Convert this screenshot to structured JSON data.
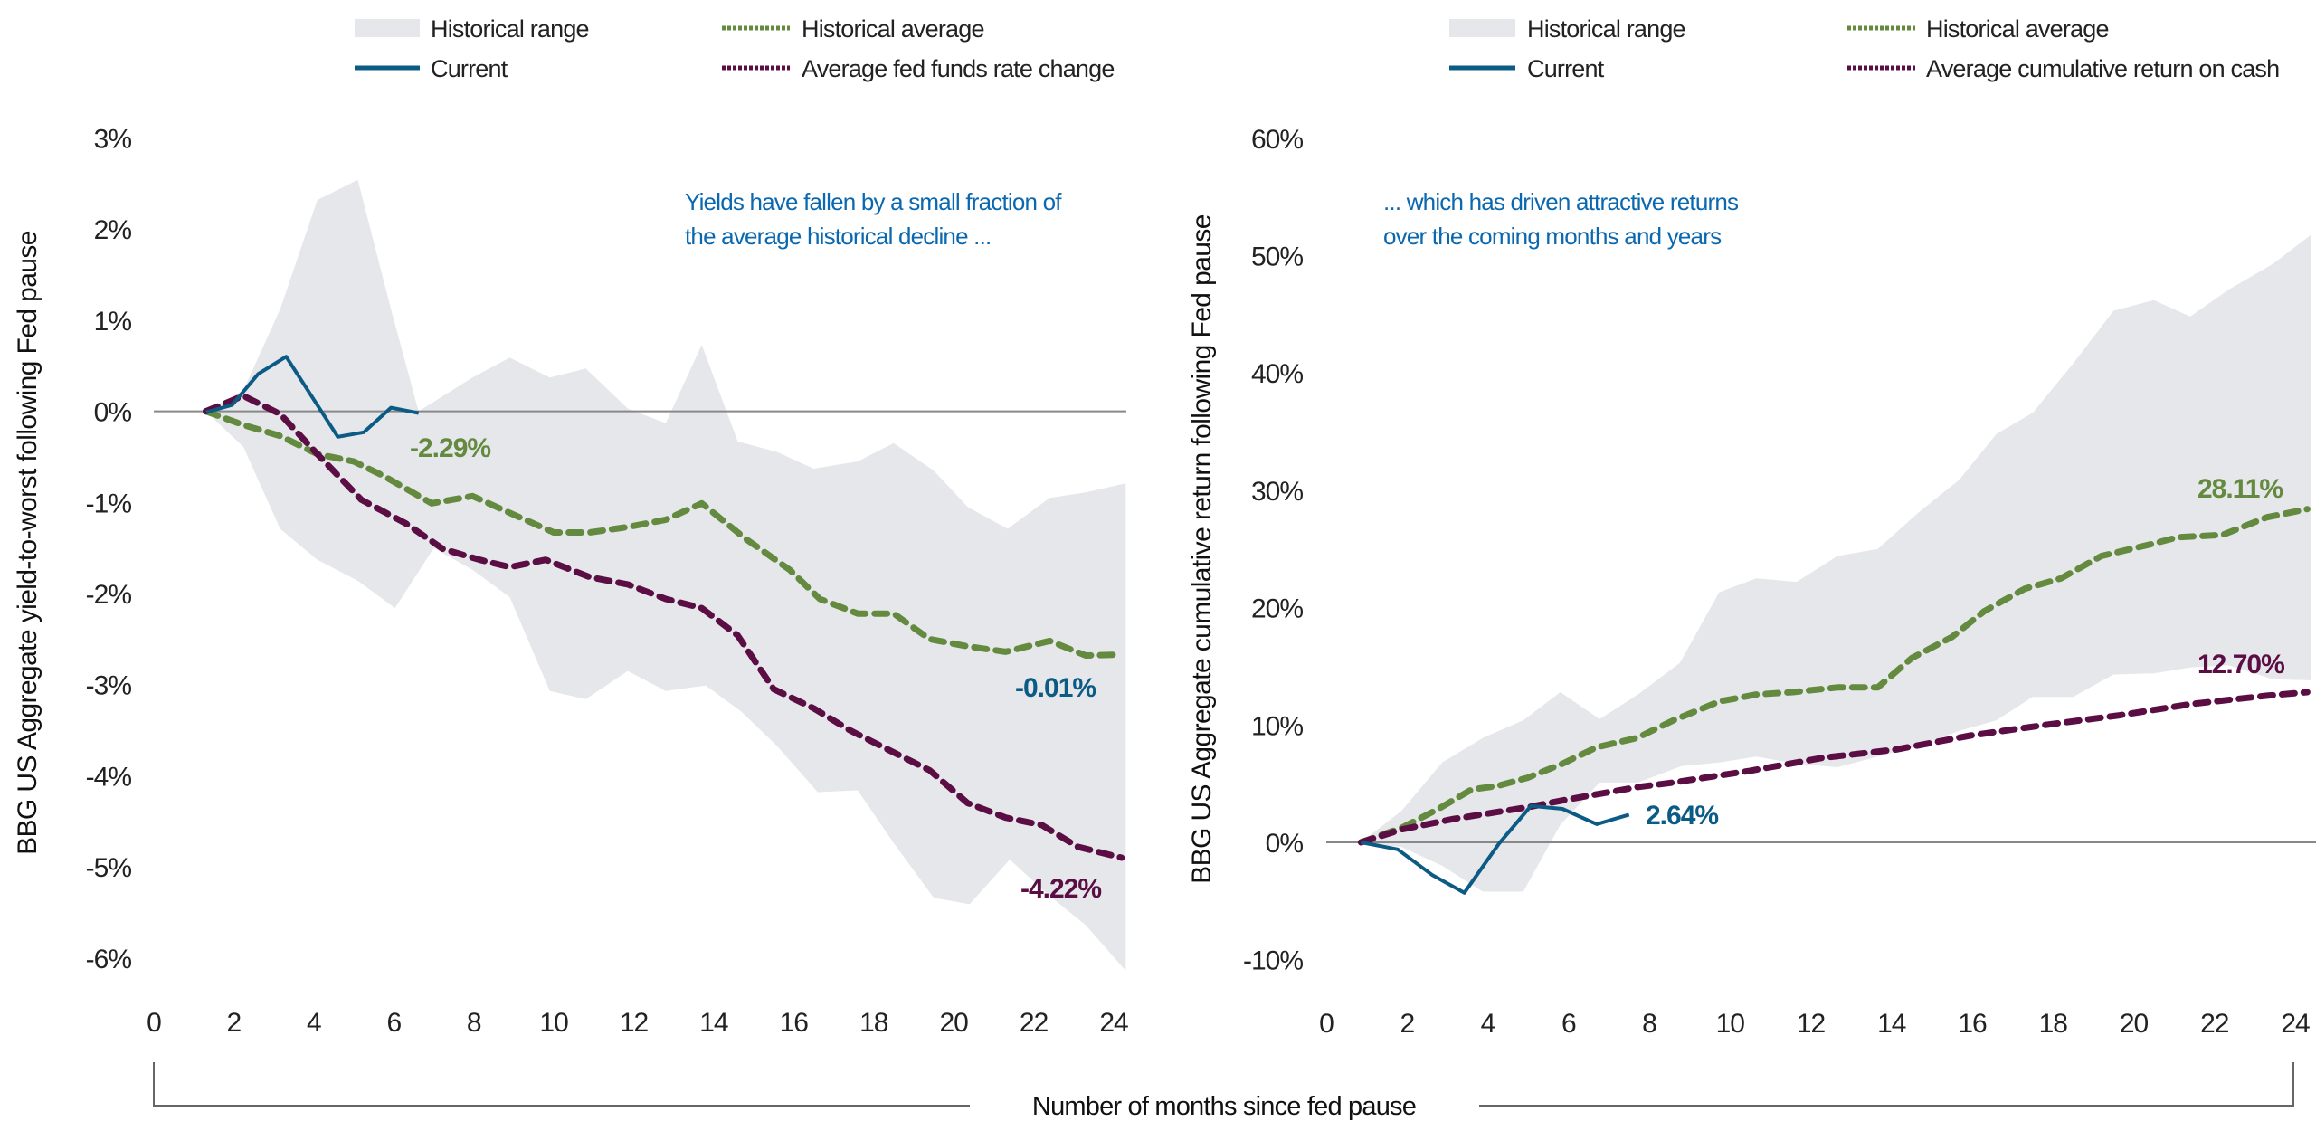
{
  "x_axis_title": "Number of months since fed pause",
  "colors": {
    "range": "#e6e7eb",
    "current": "#0b5b85",
    "average": "#648a3f",
    "third": "#5b0e44",
    "annotation": "#0a68b0",
    "zero_line": "#888888"
  },
  "chart_data": [
    {
      "type": "line",
      "ylabel": "BBG US Aggregate yield-to-worst following Fed pause",
      "xlim": [
        0,
        24
      ],
      "ylim": [
        -6,
        3
      ],
      "x_ticks": [
        "0",
        "2",
        "4",
        "6",
        "8",
        "10",
        "12",
        "14",
        "16",
        "18",
        "20",
        "22",
        "24"
      ],
      "y_ticks": [
        "3%",
        "2%",
        "1%",
        "0%",
        "-1%",
        "-2%",
        "-3%",
        "-4%",
        "-5%",
        "-6%"
      ],
      "y_tick_values": [
        3,
        2,
        1,
        0,
        -1,
        -2,
        -3,
        -4,
        -5,
        -6
      ],
      "grid": false,
      "legend": {
        "placement": "top",
        "items": [
          "Historical range",
          "Historical average",
          "Current",
          "Average fed funds rate change"
        ]
      },
      "annotation": [
        "Yields have fallen by a small fraction of",
        "the average historical decline ..."
      ],
      "range_upper": [
        [
          1.3,
          0
        ],
        [
          2.24,
          0.23
        ],
        [
          3.16,
          1.12
        ],
        [
          4.09,
          2.32
        ],
        [
          5.1,
          2.54
        ],
        [
          5.93,
          1.12
        ],
        [
          6.62,
          0
        ],
        [
          7.97,
          0.37
        ],
        [
          8.9,
          0.59
        ],
        [
          9.9,
          0.37
        ],
        [
          10.8,
          0.47
        ],
        [
          11.85,
          0.03
        ],
        [
          12.8,
          -0.13
        ],
        [
          13.7,
          0.73
        ],
        [
          14.6,
          -0.33
        ],
        [
          15.6,
          -0.45
        ],
        [
          16.5,
          -0.63
        ],
        [
          17.6,
          -0.55
        ],
        [
          18.5,
          -0.35
        ],
        [
          19.5,
          -0.65
        ],
        [
          20.35,
          -1.05
        ],
        [
          21.35,
          -1.29
        ],
        [
          22.4,
          -0.95
        ],
        [
          23.3,
          -0.89
        ],
        [
          24.3,
          -0.79
        ]
      ],
      "range_lower": [
        [
          1.3,
          0
        ],
        [
          2.24,
          -0.39
        ],
        [
          3.16,
          -1.29
        ],
        [
          4.09,
          -1.63
        ],
        [
          5.1,
          -1.86
        ],
        [
          6.03,
          -2.16
        ],
        [
          7.0,
          -1.5
        ],
        [
          7.97,
          -1.74
        ],
        [
          8.9,
          -2.04
        ],
        [
          9.9,
          -3.07
        ],
        [
          10.8,
          -3.16
        ],
        [
          11.85,
          -2.85
        ],
        [
          12.8,
          -3.07
        ],
        [
          13.8,
          -3.01
        ],
        [
          14.7,
          -3.3
        ],
        [
          15.6,
          -3.68
        ],
        [
          16.6,
          -4.18
        ],
        [
          17.6,
          -4.16
        ],
        [
          18.5,
          -4.74
        ],
        [
          19.5,
          -5.34
        ],
        [
          20.4,
          -5.41
        ],
        [
          21.4,
          -4.92
        ],
        [
          22.4,
          -5.32
        ],
        [
          23.3,
          -5.64
        ],
        [
          24.3,
          -6.14
        ]
      ],
      "series": [
        {
          "name": "Historical average",
          "style": "dashed",
          "label": "-2.29%",
          "points": [
            [
              1.3,
              0
            ],
            [
              2.24,
              -0.15
            ],
            [
              3.16,
              -0.27
            ],
            [
              4.09,
              -0.47
            ],
            [
              5.0,
              -0.55
            ],
            [
              5.75,
              -0.71
            ],
            [
              6.95,
              -1.01
            ],
            [
              7.97,
              -0.93
            ],
            [
              9.08,
              -1.15
            ],
            [
              10.0,
              -1.33
            ],
            [
              10.9,
              -1.33
            ],
            [
              11.85,
              -1.27
            ],
            [
              12.8,
              -1.19
            ],
            [
              13.7,
              -1.01
            ],
            [
              14.8,
              -1.4
            ],
            [
              15.9,
              -1.74
            ],
            [
              16.65,
              -2.06
            ],
            [
              17.6,
              -2.22
            ],
            [
              18.5,
              -2.22
            ],
            [
              19.4,
              -2.5
            ],
            [
              20.35,
              -2.58
            ],
            [
              21.3,
              -2.64
            ],
            [
              22.4,
              -2.52
            ],
            [
              23.3,
              -2.68
            ],
            [
              24.2,
              -2.67
            ]
          ]
        },
        {
          "name": "Current",
          "style": "solid",
          "label": "-0.01%",
          "points": [
            [
              1.31,
              -0.01
            ],
            [
              1.96,
              0.07
            ],
            [
              2.61,
              0.41
            ],
            [
              3.31,
              0.6
            ],
            [
              4.6,
              -0.28
            ],
            [
              5.25,
              -0.23
            ],
            [
              5.93,
              0.04
            ],
            [
              6.62,
              -0.02
            ]
          ]
        },
        {
          "name": "Average fed funds rate change",
          "style": "dashed",
          "label": "-4.22%",
          "points": [
            [
              1.3,
              0
            ],
            [
              2.24,
              0.17
            ],
            [
              3.16,
              -0.03
            ],
            [
              4.09,
              -0.47
            ],
            [
              5.19,
              -0.97
            ],
            [
              6.3,
              -1.23
            ],
            [
              7.23,
              -1.51
            ],
            [
              8.15,
              -1.63
            ],
            [
              8.9,
              -1.71
            ],
            [
              9.8,
              -1.63
            ],
            [
              10.9,
              -1.82
            ],
            [
              11.85,
              -1.9
            ],
            [
              12.8,
              -2.06
            ],
            [
              13.7,
              -2.16
            ],
            [
              14.6,
              -2.46
            ],
            [
              15.5,
              -3.05
            ],
            [
              16.5,
              -3.26
            ],
            [
              17.4,
              -3.5
            ],
            [
              18.3,
              -3.7
            ],
            [
              19.4,
              -3.94
            ],
            [
              20.35,
              -4.3
            ],
            [
              21.3,
              -4.46
            ],
            [
              22.2,
              -4.54
            ],
            [
              23.1,
              -4.78
            ],
            [
              24.2,
              -4.9
            ]
          ]
        }
      ]
    },
    {
      "type": "line",
      "ylabel": "BBG US Aggregate cumulative return following Fed pause",
      "xlim": [
        0,
        24
      ],
      "ylim": [
        -10,
        60
      ],
      "x_ticks": [
        "0",
        "2",
        "4",
        "6",
        "8",
        "10",
        "12",
        "14",
        "16",
        "18",
        "20",
        "22",
        "24"
      ],
      "y_ticks": [
        "60%",
        "50%",
        "40%",
        "30%",
        "20%",
        "10%",
        "0%",
        "-10%"
      ],
      "y_tick_values": [
        60,
        50,
        40,
        30,
        20,
        10,
        0,
        -10
      ],
      "grid": false,
      "legend": {
        "placement": "top",
        "items": [
          "Historical range",
          "Historical average",
          "Current",
          "Average cumulative return on cash"
        ]
      },
      "annotation": [
        "... which has driven attractive returns",
        "over the coming months and years"
      ],
      "range_upper": [
        [
          0.86,
          0
        ],
        [
          1.87,
          2.7
        ],
        [
          2.87,
          6.8
        ],
        [
          3.88,
          8.9
        ],
        [
          4.88,
          10.4
        ],
        [
          5.8,
          12.8
        ],
        [
          6.77,
          10.5
        ],
        [
          7.72,
          12.6
        ],
        [
          8.76,
          15.3
        ],
        [
          9.73,
          21.3
        ],
        [
          10.65,
          22.5
        ],
        [
          11.65,
          22.2
        ],
        [
          12.66,
          24.4
        ],
        [
          13.66,
          25.0
        ],
        [
          14.67,
          28.1
        ],
        [
          15.68,
          30.9
        ],
        [
          16.6,
          34.8
        ],
        [
          17.5,
          36.6
        ],
        [
          18.5,
          40.8
        ],
        [
          19.5,
          45.3
        ],
        [
          20.5,
          46.2
        ],
        [
          21.4,
          44.8
        ],
        [
          22.35,
          47.1
        ],
        [
          23.45,
          49.3
        ],
        [
          24.4,
          51.8
        ]
      ],
      "range_lower": [
        [
          0.86,
          0
        ],
        [
          1.87,
          -0.4
        ],
        [
          2.87,
          -2.0
        ],
        [
          3.88,
          -4.2
        ],
        [
          4.88,
          -4.2
        ],
        [
          5.8,
          1.5
        ],
        [
          6.77,
          5.1
        ],
        [
          7.72,
          5.1
        ],
        [
          8.8,
          6.5
        ],
        [
          9.73,
          6.8
        ],
        [
          10.65,
          7.3
        ],
        [
          11.65,
          6.7
        ],
        [
          12.66,
          6.4
        ],
        [
          13.66,
          7.3
        ],
        [
          14.67,
          8.2
        ],
        [
          15.68,
          9.5
        ],
        [
          16.6,
          10.4
        ],
        [
          17.5,
          12.4
        ],
        [
          18.5,
          12.4
        ],
        [
          19.5,
          14.3
        ],
        [
          20.5,
          14.4
        ],
        [
          21.4,
          14.9
        ],
        [
          22.35,
          15.1
        ],
        [
          23.45,
          13.9
        ],
        [
          24.4,
          13.8
        ]
      ],
      "series": [
        {
          "name": "Historical average",
          "style": "dashed",
          "label": "28.11%",
          "points": [
            [
              0.86,
              0
            ],
            [
              1.87,
              1.24
            ],
            [
              2.78,
              2.85
            ],
            [
              3.6,
              4.5
            ],
            [
              4.24,
              4.8
            ],
            [
              4.98,
              5.5
            ],
            [
              5.85,
              6.7
            ],
            [
              6.7,
              8.1
            ],
            [
              7.7,
              8.9
            ],
            [
              8.6,
              10.4
            ],
            [
              9.73,
              12.0
            ],
            [
              10.65,
              12.6
            ],
            [
              11.56,
              12.8
            ],
            [
              12.66,
              13.2
            ],
            [
              13.66,
              13.2
            ],
            [
              14.5,
              15.7
            ],
            [
              15.5,
              17.5
            ],
            [
              16.3,
              19.7
            ],
            [
              17.3,
              21.6
            ],
            [
              18.2,
              22.5
            ],
            [
              19.2,
              24.4
            ],
            [
              20.3,
              25.3
            ],
            [
              21.1,
              26.0
            ],
            [
              22.2,
              26.2
            ],
            [
              23.3,
              27.7
            ],
            [
              24.3,
              28.4
            ]
          ]
        },
        {
          "name": "Current",
          "style": "solid",
          "label": "2.64%",
          "points": [
            [
              0.86,
              0
            ],
            [
              1.77,
              -0.6
            ],
            [
              2.63,
              -2.8
            ],
            [
              3.42,
              -4.3
            ],
            [
              4.28,
              -0.1
            ],
            [
              5.07,
              3.1
            ],
            [
              5.85,
              2.85
            ],
            [
              6.7,
              1.55
            ],
            [
              7.5,
              2.36
            ]
          ]
        },
        {
          "name": "Average cumulative return on cash",
          "style": "dashed",
          "label": "12.70%",
          "points": [
            [
              0.86,
              0
            ],
            [
              1.87,
              1.1
            ],
            [
              3.16,
              2.0
            ],
            [
              5.0,
              3.0
            ],
            [
              5.9,
              3.6
            ],
            [
              7.7,
              4.7
            ],
            [
              8.6,
              5.1
            ],
            [
              10.5,
              6.1
            ],
            [
              12.3,
              7.2
            ],
            [
              14.1,
              7.9
            ],
            [
              15.95,
              9.1
            ],
            [
              17.8,
              10.0
            ],
            [
              19.6,
              10.8
            ],
            [
              21.45,
              11.8
            ],
            [
              23.3,
              12.5
            ],
            [
              24.3,
              12.8
            ]
          ]
        }
      ]
    }
  ]
}
